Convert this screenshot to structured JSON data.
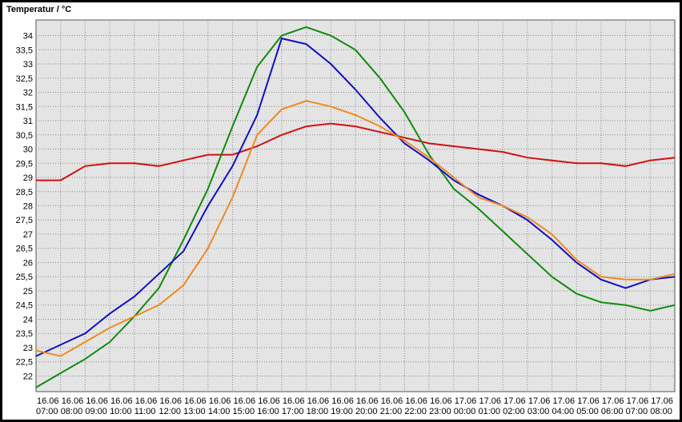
{
  "chart_data": {
    "type": "line",
    "title": "Temperatur / °C",
    "categories": [
      "16.06 07:00",
      "16.06 08:00",
      "16.06 09:00",
      "16.06 10:00",
      "16.06 11:00",
      "16.06 12:00",
      "16.06 13:00",
      "16.06 14:00",
      "16.06 15:00",
      "16.06 16:00",
      "16.06 17:00",
      "16.06 18:00",
      "16.06 19:00",
      "16.06 20:00",
      "16.06 21:00",
      "16.06 22:00",
      "16.06 23:00",
      "17.06 00:00",
      "17.06 01:00",
      "17.06 02:00",
      "17.06 03:00",
      "17.06 04:00",
      "17.06 05:00",
      "17.06 06:00",
      "17.06 07:00",
      "17.06 08:00",
      null
    ],
    "series": [
      {
        "color": "#d01010",
        "values": [
          28.9,
          28.9,
          29.4,
          29.5,
          29.5,
          29.4,
          29.6,
          29.8,
          29.8,
          30.1,
          30.5,
          30.8,
          30.9,
          30.8,
          30.6,
          30.4,
          30.2,
          30.1,
          30.0,
          29.9,
          29.7,
          29.6,
          29.5,
          29.5,
          29.4,
          29.6,
          29.7
        ]
      },
      {
        "color": "#108a10",
        "values": [
          21.6,
          22.1,
          22.6,
          23.2,
          24.1,
          25.1,
          26.8,
          28.6,
          30.8,
          32.9,
          34.0,
          34.3,
          34.0,
          33.5,
          32.5,
          31.3,
          29.8,
          28.6,
          27.9,
          27.1,
          26.3,
          25.5,
          24.9,
          24.6,
          24.5,
          24.3,
          24.5
        ]
      },
      {
        "color": "#1010c0",
        "values": [
          22.7,
          23.1,
          23.5,
          24.2,
          24.8,
          25.6,
          26.4,
          28.0,
          29.4,
          31.2,
          33.9,
          33.7,
          33.0,
          32.1,
          31.1,
          30.2,
          29.6,
          28.9,
          28.4,
          28.0,
          27.5,
          26.8,
          26.0,
          25.4,
          25.1,
          25.4,
          25.5
        ]
      },
      {
        "color": "#f08a20",
        "values": [
          22.9,
          22.7,
          23.2,
          23.7,
          24.1,
          24.5,
          25.2,
          26.5,
          28.3,
          30.5,
          31.4,
          31.7,
          31.5,
          31.2,
          30.8,
          30.3,
          29.7,
          29.0,
          28.3,
          28.0,
          27.6,
          27.0,
          26.1,
          25.5,
          25.4,
          25.4,
          25.6
        ]
      }
    ],
    "ylim": [
      21.45,
      34.55
    ],
    "yticks": [
      22,
      {
        "value": 22.5,
        "label": "22,5"
      },
      23,
      {
        "value": 23.5,
        "label": "23,5"
      },
      24,
      {
        "value": 24.5,
        "label": "24,5"
      },
      25,
      {
        "value": 25.5,
        "label": "25,5"
      },
      26,
      {
        "value": 26.5,
        "label": "26,5"
      },
      27,
      {
        "value": 27.5,
        "label": "27,5"
      },
      28,
      {
        "value": 28.5,
        "label": "28,5"
      },
      29,
      {
        "value": 29.5,
        "label": "29,5"
      },
      30,
      {
        "value": 30.5,
        "label": "30,5"
      },
      31,
      {
        "value": 31.5,
        "label": "31,5"
      },
      32,
      {
        "value": 32.5,
        "label": "32,5"
      },
      33,
      {
        "value": 33.5,
        "label": "33,5"
      },
      34
    ],
    "grid": true
  }
}
